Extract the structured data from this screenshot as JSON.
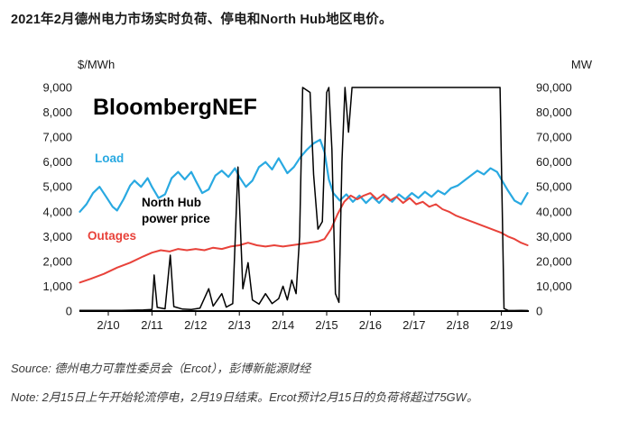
{
  "title": "2021年2月德州电力市场实时负荷、停电和North Hub地区电价。",
  "watermark": "BloombergNEF",
  "source": "Source: 德州电力可靠性委员会（Ercot），彭博新能源财经",
  "note": "Note: 2月15日上午开始轮流停电，2月19日结束。Ercot预计2月15日的负荷将超过75GW。",
  "labels": {
    "load": "Load",
    "price_line1": "North Hub",
    "price_line2": "power price",
    "outages": "Outages"
  },
  "colors": {
    "load": "#29a9e1",
    "outages": "#e8423a",
    "price": "#000000"
  },
  "axes": {
    "left_unit": "$/MWh",
    "right_unit": "MW",
    "left_ticks": [
      "0",
      "1,000",
      "2,000",
      "3,000",
      "4,000",
      "5,000",
      "6,000",
      "7,000",
      "8,000",
      "9,000"
    ],
    "right_ticks": [
      "0",
      "10,000",
      "20,000",
      "30,000",
      "40,000",
      "50,000",
      "60,000",
      "70,000",
      "80,000",
      "90,000"
    ],
    "x_ticks": [
      "2/10",
      "2/11",
      "2/12",
      "2/13",
      "2/14",
      "2/15",
      "2/16",
      "2/17",
      "2/18",
      "2/19"
    ]
  },
  "chart_data": {
    "type": "line",
    "title": "2021年2月德州电力市场实时负荷、停电和North Hub地区电价",
    "x_unit": "day of February 2021",
    "x_range": [
      9.35,
      19.6
    ],
    "x_tick_days": [
      10,
      11,
      12,
      13,
      14,
      15,
      16,
      17,
      18,
      19
    ],
    "left_axis": {
      "label": "$/MWh",
      "range": [
        0,
        9000
      ]
    },
    "right_axis": {
      "label": "MW",
      "range": [
        0,
        90000
      ]
    },
    "grid": false,
    "legend": "inline-labels",
    "series": [
      {
        "name": "Load",
        "axis": "right",
        "unit": "MW",
        "color": "#29a9e1",
        "points": [
          [
            9.35,
            40000
          ],
          [
            9.5,
            43000
          ],
          [
            9.65,
            47500
          ],
          [
            9.8,
            50000
          ],
          [
            9.95,
            46000
          ],
          [
            10.1,
            42000
          ],
          [
            10.2,
            40500
          ],
          [
            10.35,
            45000
          ],
          [
            10.5,
            50500
          ],
          [
            10.6,
            52500
          ],
          [
            10.75,
            50000
          ],
          [
            10.9,
            53500
          ],
          [
            11.0,
            50000
          ],
          [
            11.15,
            45500
          ],
          [
            11.3,
            47000
          ],
          [
            11.45,
            53500
          ],
          [
            11.6,
            56000
          ],
          [
            11.75,
            53000
          ],
          [
            11.9,
            56000
          ],
          [
            12.0,
            52500
          ],
          [
            12.15,
            47500
          ],
          [
            12.3,
            49000
          ],
          [
            12.45,
            54500
          ],
          [
            12.6,
            56500
          ],
          [
            12.75,
            54000
          ],
          [
            12.9,
            57500
          ],
          [
            13.0,
            54000
          ],
          [
            13.15,
            50000
          ],
          [
            13.3,
            52500
          ],
          [
            13.45,
            58000
          ],
          [
            13.6,
            60000
          ],
          [
            13.75,
            57000
          ],
          [
            13.9,
            61500
          ],
          [
            14.0,
            58500
          ],
          [
            14.1,
            55500
          ],
          [
            14.25,
            58000
          ],
          [
            14.4,
            62000
          ],
          [
            14.55,
            65000
          ],
          [
            14.7,
            67500
          ],
          [
            14.85,
            69000
          ],
          [
            14.95,
            64000
          ],
          [
            15.05,
            53000
          ],
          [
            15.15,
            47500
          ],
          [
            15.3,
            44500
          ],
          [
            15.45,
            47000
          ],
          [
            15.6,
            44000
          ],
          [
            15.75,
            46500
          ],
          [
            15.9,
            43500
          ],
          [
            16.05,
            46000
          ],
          [
            16.2,
            43500
          ],
          [
            16.35,
            46500
          ],
          [
            16.5,
            44000
          ],
          [
            16.65,
            47000
          ],
          [
            16.8,
            45000
          ],
          [
            16.95,
            47500
          ],
          [
            17.1,
            45500
          ],
          [
            17.25,
            48000
          ],
          [
            17.4,
            46000
          ],
          [
            17.55,
            48500
          ],
          [
            17.7,
            47000
          ],
          [
            17.85,
            49500
          ],
          [
            18.0,
            50500
          ],
          [
            18.15,
            52500
          ],
          [
            18.3,
            54500
          ],
          [
            18.45,
            56500
          ],
          [
            18.6,
            55000
          ],
          [
            18.75,
            57500
          ],
          [
            18.9,
            56000
          ],
          [
            19.0,
            53000
          ],
          [
            19.15,
            48500
          ],
          [
            19.3,
            44500
          ],
          [
            19.45,
            43000
          ],
          [
            19.6,
            47500
          ]
        ]
      },
      {
        "name": "Outages",
        "axis": "right",
        "unit": "MW",
        "color": "#e8423a",
        "points": [
          [
            9.35,
            11500
          ],
          [
            9.6,
            13000
          ],
          [
            9.9,
            15000
          ],
          [
            10.2,
            17500
          ],
          [
            10.5,
            19500
          ],
          [
            10.8,
            22000
          ],
          [
            11.0,
            23500
          ],
          [
            11.2,
            24500
          ],
          [
            11.4,
            24000
          ],
          [
            11.6,
            25000
          ],
          [
            11.8,
            24500
          ],
          [
            12.0,
            25000
          ],
          [
            12.2,
            24500
          ],
          [
            12.4,
            25500
          ],
          [
            12.6,
            25000
          ],
          [
            12.8,
            26000
          ],
          [
            13.0,
            26500
          ],
          [
            13.2,
            27500
          ],
          [
            13.4,
            26500
          ],
          [
            13.6,
            26000
          ],
          [
            13.8,
            26500
          ],
          [
            14.0,
            26000
          ],
          [
            14.2,
            26500
          ],
          [
            14.4,
            27000
          ],
          [
            14.6,
            27500
          ],
          [
            14.8,
            28000
          ],
          [
            14.95,
            29000
          ],
          [
            15.1,
            33000
          ],
          [
            15.25,
            39000
          ],
          [
            15.4,
            44000
          ],
          [
            15.55,
            46500
          ],
          [
            15.7,
            45000
          ],
          [
            15.85,
            46500
          ],
          [
            16.0,
            47500
          ],
          [
            16.15,
            45000
          ],
          [
            16.3,
            47000
          ],
          [
            16.45,
            44500
          ],
          [
            16.6,
            46000
          ],
          [
            16.75,
            43500
          ],
          [
            16.9,
            45500
          ],
          [
            17.05,
            43000
          ],
          [
            17.2,
            44000
          ],
          [
            17.35,
            42000
          ],
          [
            17.5,
            43000
          ],
          [
            17.65,
            41000
          ],
          [
            17.8,
            40000
          ],
          [
            17.95,
            38500
          ],
          [
            18.1,
            37500
          ],
          [
            18.25,
            36500
          ],
          [
            18.4,
            35500
          ],
          [
            18.55,
            34500
          ],
          [
            18.7,
            33500
          ],
          [
            18.85,
            32500
          ],
          [
            19.0,
            31500
          ],
          [
            19.15,
            30000
          ],
          [
            19.3,
            29000
          ],
          [
            19.45,
            27500
          ],
          [
            19.6,
            26500
          ]
        ]
      },
      {
        "name": "North Hub power price",
        "axis": "left",
        "unit": "$/MWh",
        "color": "#000000",
        "points": [
          [
            9.35,
            30
          ],
          [
            9.8,
            25
          ],
          [
            10.3,
            30
          ],
          [
            10.8,
            45
          ],
          [
            11.0,
            60
          ],
          [
            11.05,
            1450
          ],
          [
            11.12,
            150
          ],
          [
            11.3,
            90
          ],
          [
            11.42,
            2250
          ],
          [
            11.5,
            180
          ],
          [
            11.7,
            80
          ],
          [
            11.9,
            60
          ],
          [
            12.1,
            120
          ],
          [
            12.3,
            900
          ],
          [
            12.4,
            200
          ],
          [
            12.6,
            700
          ],
          [
            12.7,
            160
          ],
          [
            12.85,
            300
          ],
          [
            12.97,
            5800
          ],
          [
            13.08,
            900
          ],
          [
            13.2,
            1950
          ],
          [
            13.3,
            450
          ],
          [
            13.45,
            280
          ],
          [
            13.6,
            700
          ],
          [
            13.75,
            300
          ],
          [
            13.9,
            500
          ],
          [
            14.0,
            1000
          ],
          [
            14.1,
            450
          ],
          [
            14.2,
            1250
          ],
          [
            14.3,
            700
          ],
          [
            14.38,
            3000
          ],
          [
            14.45,
            9000
          ],
          [
            14.62,
            8800
          ],
          [
            14.7,
            5500
          ],
          [
            14.8,
            3300
          ],
          [
            14.9,
            3600
          ],
          [
            15.0,
            8800
          ],
          [
            15.05,
            9000
          ],
          [
            15.12,
            6500
          ],
          [
            15.2,
            700
          ],
          [
            15.28,
            350
          ],
          [
            15.35,
            6000
          ],
          [
            15.42,
            9000
          ],
          [
            15.5,
            7200
          ],
          [
            15.58,
            9000
          ],
          [
            16.0,
            9000
          ],
          [
            17.0,
            9000
          ],
          [
            18.0,
            9000
          ],
          [
            18.97,
            9000
          ],
          [
            19.02,
            4000
          ],
          [
            19.06,
            100
          ],
          [
            19.15,
            30
          ],
          [
            19.3,
            20
          ],
          [
            19.45,
            25
          ],
          [
            19.6,
            20
          ]
        ]
      }
    ]
  }
}
